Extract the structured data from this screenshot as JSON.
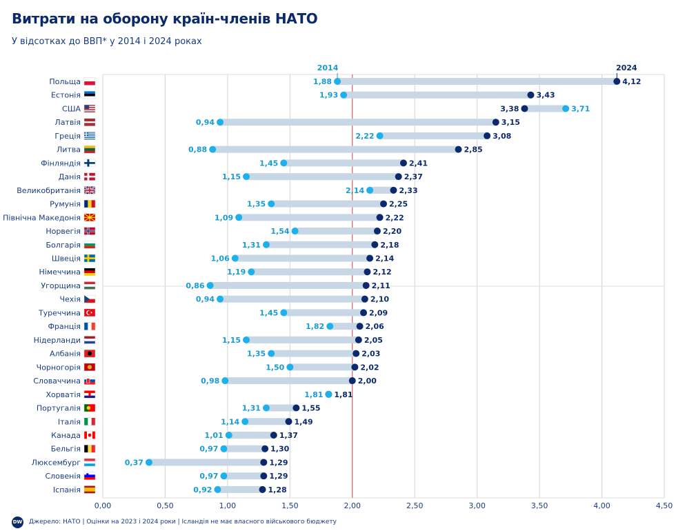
{
  "title": "Витрати на оборону країн-членів НАТО",
  "subtitle": "У відсотках до ВВП* у 2014 і 2024 роках",
  "footer": {
    "logo_text": "DW",
    "source": "Джерело: НАТО | Оцінки на 2023 і 2024 роки | Ісландія не має власного військового бюджету"
  },
  "colors": {
    "y2014": "#1eb0ea",
    "y2024": "#0c2a6b",
    "bar": "#c7d7e5",
    "ref_line": "#d9484b",
    "label_2014": "#1a9bd4",
    "label_2024": "#0c2a6b"
  },
  "chart_data": {
    "type": "dumbbell",
    "title": "Витрати на оборону країн-членів НАТО",
    "subtitle": "У відсотках до ВВП* у 2014 і 2024 роках",
    "xlim": [
      0,
      4.5
    ],
    "xticks": [
      "0,00",
      "0,50",
      "1,00",
      "1,50",
      "2,00",
      "2,50",
      "3,00",
      "3,50",
      "4,00",
      "4,50"
    ],
    "reference_line": 2.0,
    "grid": true,
    "series": [
      {
        "name": "2014",
        "values": [
          1.88,
          1.93,
          3.71,
          0.94,
          2.22,
          0.88,
          1.45,
          1.15,
          2.14,
          1.35,
          1.09,
          1.54,
          1.31,
          1.06,
          1.19,
          0.86,
          0.94,
          1.45,
          1.82,
          1.15,
          1.35,
          1.5,
          0.98,
          1.81,
          1.31,
          1.14,
          1.01,
          0.97,
          0.37,
          0.97,
          0.92
        ]
      },
      {
        "name": "2024",
        "values": [
          4.12,
          3.43,
          3.38,
          3.15,
          3.08,
          2.85,
          2.41,
          2.37,
          2.33,
          2.25,
          2.22,
          2.2,
          2.18,
          2.14,
          2.12,
          2.11,
          2.1,
          2.09,
          2.06,
          2.05,
          2.03,
          2.02,
          2.0,
          1.81,
          1.55,
          1.49,
          1.37,
          1.3,
          1.29,
          1.29,
          1.28
        ]
      }
    ],
    "categories": [
      "Польща",
      "Естонія",
      "США",
      "Латвія",
      "Греція",
      "Литва",
      "Фінляндія",
      "Данія",
      "Великобританія",
      "Румунія",
      "Північна Македонія",
      "Норвегія",
      "Болгарія",
      "Швеція",
      "Німеччина",
      "Угорщина",
      "Чехія",
      "Туреччина",
      "Франція",
      "Нідерланди",
      "Албанія",
      "Чорногорія",
      "Словаччина",
      "Хорватія",
      "Португалія",
      "Італія",
      "Канада",
      "Бельгія",
      "Люксембург",
      "Словенія",
      "Іспанія"
    ],
    "labels_2014": [
      "1,88",
      "1,93",
      "3,71",
      "0,94",
      "2,22",
      "0,88",
      "1,45",
      "1,15",
      "2,14",
      "1,35",
      "1,09",
      "1,54",
      "1,31",
      "1,06",
      "1,19",
      "0,86",
      "0,94",
      "1,45",
      "1,82",
      "1,15",
      "1,35",
      "1,50",
      "0,98",
      "1,81",
      "1,31",
      "1,14",
      "1,01",
      "0,97",
      "0,37",
      "0,97",
      "0,92"
    ],
    "labels_2024": [
      "4,12",
      "3,43",
      "3,38",
      "3,15",
      "3,08",
      "2,85",
      "2,41",
      "2,37",
      "2,33",
      "2,25",
      "2,22",
      "2,20",
      "2,18",
      "2,14",
      "2,12",
      "2,11",
      "2,10",
      "2,09",
      "2,06",
      "2,05",
      "2,03",
      "2,02",
      "2,00",
      "1,81",
      "1,55",
      "1,49",
      "1,37",
      "1,30",
      "1,29",
      "1,29",
      "1,28"
    ],
    "flags": [
      "poland",
      "estonia",
      "usa",
      "latvia",
      "greece",
      "lithuania",
      "finland",
      "denmark",
      "uk",
      "romania",
      "north-macedonia",
      "norway",
      "bulgaria",
      "sweden",
      "germany",
      "hungary",
      "czechia",
      "turkey",
      "france",
      "netherlands",
      "albania",
      "montenegro",
      "slovakia",
      "croatia",
      "portugal",
      "italy",
      "canada",
      "belgium",
      "luxembourg",
      "slovenia",
      "spain"
    ]
  }
}
